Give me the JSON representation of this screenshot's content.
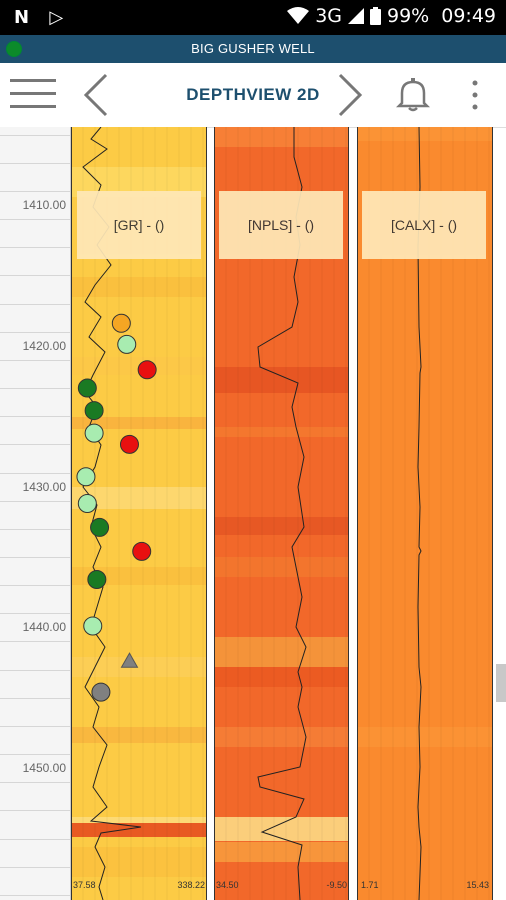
{
  "status_bar": {
    "time": "09:49",
    "battery": "99%",
    "network": "3G"
  },
  "well": {
    "name": "BIG GUSHER WELL"
  },
  "toolbar": {
    "title": "DEPTHVIEW 2D"
  },
  "depth_axis": {
    "labels": [
      "1410.00",
      "1420.00",
      "1430.00",
      "1440.00",
      "1450.00"
    ]
  },
  "tracks": [
    {
      "label": "[GR] - ()",
      "scale_min": "37.58",
      "scale_max": "338.22"
    },
    {
      "label": "[NPLS] - ()",
      "scale_min": "34.50",
      "scale_max": "-9.50"
    },
    {
      "label": "[CALX] - ()",
      "scale_min": "1.71",
      "scale_max": "15.43"
    }
  ],
  "colors": {
    "gr_fill": "#fccb45",
    "npls_fill": "#f2682a",
    "calx_fill": "#fa8a2e",
    "well_bar": "#1d4f6e"
  },
  "markers": [
    {
      "type": "circle",
      "color": "#f5a623",
      "depth": 1418.4,
      "offset": 0.37
    },
    {
      "type": "circle",
      "color": "#a8ecb0",
      "depth": 1419.9,
      "offset": 0.41
    },
    {
      "type": "circle",
      "color": "#e81010",
      "depth": 1421.7,
      "offset": 0.56
    },
    {
      "type": "circle",
      "color": "#1a7a23",
      "depth": 1423.0,
      "offset": 0.12
    },
    {
      "type": "circle",
      "color": "#1a7a23",
      "depth": 1424.6,
      "offset": 0.17
    },
    {
      "type": "circle",
      "color": "#a8ecb0",
      "depth": 1426.2,
      "offset": 0.17
    },
    {
      "type": "circle",
      "color": "#e81010",
      "depth": 1427.0,
      "offset": 0.43
    },
    {
      "type": "circle",
      "color": "#a8ecb0",
      "depth": 1429.3,
      "offset": 0.11
    },
    {
      "type": "circle",
      "color": "#a8ecb0",
      "depth": 1431.2,
      "offset": 0.12
    },
    {
      "type": "circle",
      "color": "#1a7a23",
      "depth": 1432.9,
      "offset": 0.21
    },
    {
      "type": "circle",
      "color": "#e81010",
      "depth": 1434.6,
      "offset": 0.52
    },
    {
      "type": "circle",
      "color": "#1a7a23",
      "depth": 1436.6,
      "offset": 0.19
    },
    {
      "type": "circle",
      "color": "#a8ecb0",
      "depth": 1439.9,
      "offset": 0.16
    },
    {
      "type": "triangle",
      "color": "#808080",
      "depth": 1442.4,
      "offset": 0.43
    },
    {
      "type": "circle",
      "color": "#808080",
      "depth": 1444.6,
      "offset": 0.22
    }
  ]
}
